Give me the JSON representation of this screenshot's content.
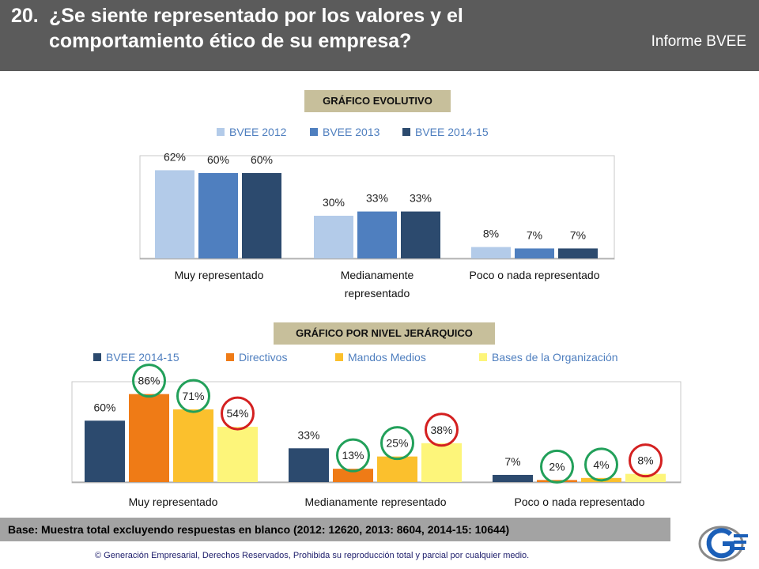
{
  "header": {
    "number": "20.",
    "title_line1": "¿Se siente representado por los valores y el",
    "title_line2": "comportamiento ético de su empresa?",
    "report": "Informe BVEE"
  },
  "colors": {
    "header_bg": "#5b5b5b",
    "tag_bg": "#c7bf9b",
    "good_circle": "#22a05a",
    "bad_circle": "#d42020"
  },
  "chart_data": [
    {
      "type": "bar",
      "title": "GRÁFICO EVOLUTIVO",
      "categories": [
        "Muy representado",
        "Medianamente representado",
        "Poco o nada representado"
      ],
      "series": [
        {
          "name": "BVEE 2012",
          "color": "#b3cbe9",
          "values": [
            62,
            30,
            8
          ],
          "labels": [
            "62%",
            "30%",
            "8%"
          ]
        },
        {
          "name": "BVEE 2013",
          "color": "#4f7fbf",
          "values": [
            60,
            33,
            7
          ],
          "labels": [
            "60%",
            "33%",
            "7%"
          ]
        },
        {
          "name": "BVEE 2014-15",
          "color": "#2c4a6e",
          "values": [
            60,
            33,
            7
          ],
          "labels": [
            "60%",
            "33%",
            "7%"
          ]
        }
      ],
      "ylim": [
        0,
        70
      ],
      "legend": "top"
    },
    {
      "type": "bar",
      "title": "GRÁFICO POR NIVEL JERÁRQUICO",
      "categories": [
        "Muy representado",
        "Medianamente representado",
        "Poco o nada representado"
      ],
      "series": [
        {
          "name": "BVEE 2014-15",
          "color": "#2c4a6e",
          "values": [
            60,
            33,
            7
          ],
          "labels": [
            "60%",
            "33%",
            "7%"
          ],
          "circles": [
            null,
            null,
            null
          ]
        },
        {
          "name": "Directivos",
          "color": "#ef7b16",
          "values": [
            86,
            13,
            2
          ],
          "labels": [
            "86%",
            "13%",
            "2%"
          ],
          "circles": [
            "good",
            "good",
            "good"
          ]
        },
        {
          "name": "Mandos Medios",
          "color": "#fbc02d",
          "values": [
            71,
            25,
            4
          ],
          "labels": [
            "71%",
            "25%",
            "4%"
          ],
          "circles": [
            "good",
            "good",
            "good"
          ]
        },
        {
          "name": "Bases de la Organización",
          "color": "#fdf57a",
          "values": [
            54,
            38,
            8
          ],
          "labels": [
            "54%",
            "38%",
            "8%"
          ],
          "circles": [
            "bad",
            "bad",
            "bad"
          ]
        }
      ],
      "ylim": [
        0,
        95
      ],
      "legend": "top"
    }
  ],
  "footer": {
    "base": "Base:  Muestra total excluyendo respuestas en blanco (2012: 12620, 2013: 8604, 2014-15: 10644)",
    "copyright": "© Generación Empresarial, Derechos Reservados, Prohibida su reproducción total y parcial por cualquier medio."
  },
  "logo": {
    "icon": "ge-logo-icon"
  }
}
